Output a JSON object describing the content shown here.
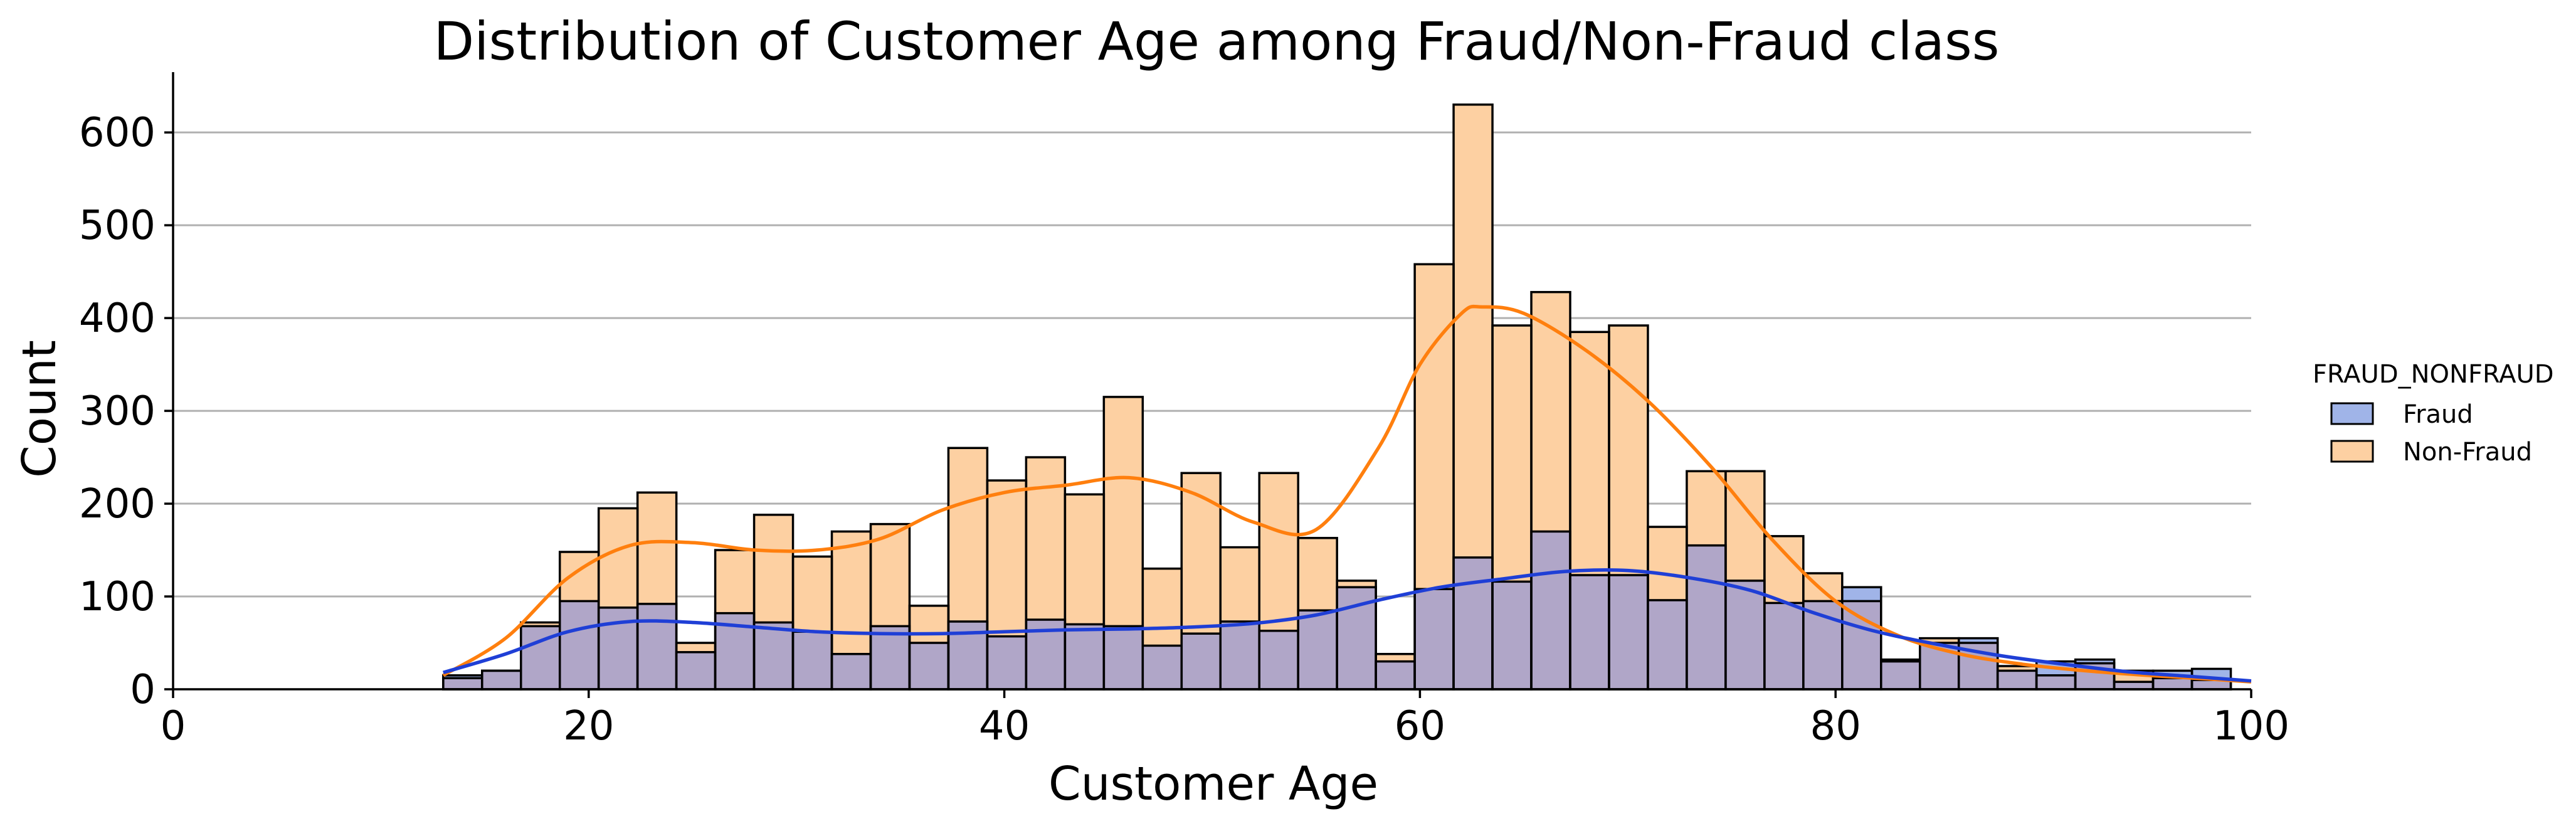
{
  "chart_data": {
    "type": "bar",
    "title": "Distribution of Customer Age among Fraud/Non-Fraud class",
    "xlabel": "Customer Age",
    "ylabel": "Count",
    "xlim": [
      0,
      100
    ],
    "ylim": [
      0,
      665
    ],
    "xticks": [
      0,
      20,
      40,
      60,
      80,
      100
    ],
    "yticks": [
      0,
      100,
      200,
      300,
      400,
      500,
      600
    ],
    "grid": "horizontal",
    "legend": {
      "title": "FRAUD_NONFRAUD",
      "placement": "right",
      "entries": [
        "Fraud",
        "Non-Fraud"
      ]
    },
    "bin_edges": [
      13,
      14.87,
      16.74,
      18.61,
      20.48,
      22.35,
      24.22,
      26.09,
      27.96,
      29.83,
      31.7,
      33.57,
      35.44,
      37.31,
      39.18,
      41.05,
      42.92,
      44.79,
      46.66,
      48.53,
      50.4,
      52.27,
      54.14,
      56.01,
      57.88,
      59.75,
      61.62,
      63.49,
      65.36,
      67.23,
      69.1,
      70.97,
      72.84,
      74.71,
      76.58,
      78.45,
      80.32,
      82.19,
      84.06,
      85.93,
      87.8,
      89.67,
      91.54,
      93.41,
      95.28,
      97.15,
      99.02
    ],
    "series": [
      {
        "name": "Fraud",
        "values": [
          15,
          20,
          68,
          95,
          88,
          92,
          40,
          82,
          72,
          62,
          38,
          68,
          50,
          73,
          57,
          75,
          70,
          68,
          47,
          60,
          73,
          63,
          85,
          110,
          30,
          108,
          142,
          116,
          170,
          123,
          123,
          96,
          155,
          117,
          93,
          95,
          110,
          32,
          50,
          55,
          20,
          30,
          32,
          8,
          20,
          22
        ],
        "kde": [
          [
            13,
            18
          ],
          [
            16,
            38
          ],
          [
            19,
            62
          ],
          [
            22,
            73
          ],
          [
            25,
            72
          ],
          [
            28,
            67
          ],
          [
            31,
            62
          ],
          [
            34,
            60
          ],
          [
            37,
            60
          ],
          [
            40,
            62
          ],
          [
            43,
            64
          ],
          [
            46,
            65
          ],
          [
            49,
            67
          ],
          [
            52,
            71
          ],
          [
            55,
            80
          ],
          [
            58,
            96
          ],
          [
            61,
            110
          ],
          [
            64,
            119
          ],
          [
            67,
            127
          ],
          [
            70,
            128
          ],
          [
            73,
            120
          ],
          [
            76,
            106
          ],
          [
            79,
            82
          ],
          [
            82,
            62
          ],
          [
            85,
            48
          ],
          [
            88,
            36
          ],
          [
            91,
            27
          ],
          [
            94,
            19
          ],
          [
            97,
            14
          ],
          [
            100,
            9
          ]
        ],
        "color": "#a0b4e8",
        "kde_color": "#1f3fd6"
      },
      {
        "name": "Non-Fraud",
        "values": [
          12,
          20,
          72,
          148,
          195,
          212,
          50,
          150,
          188,
          143,
          170,
          178,
          90,
          260,
          225,
          250,
          210,
          315,
          130,
          233,
          153,
          233,
          163,
          117,
          38,
          458,
          630,
          392,
          428,
          385,
          392,
          175,
          235,
          235,
          165,
          125,
          95,
          30,
          55,
          50,
          25,
          15,
          28,
          20,
          12,
          10
        ],
        "kde": [
          [
            13,
            15
          ],
          [
            16,
            55
          ],
          [
            19,
            120
          ],
          [
            22,
            155
          ],
          [
            25,
            158
          ],
          [
            28,
            150
          ],
          [
            31,
            150
          ],
          [
            34,
            162
          ],
          [
            37,
            193
          ],
          [
            40,
            212
          ],
          [
            43,
            220
          ],
          [
            46,
            228
          ],
          [
            49,
            212
          ],
          [
            52,
            180
          ],
          [
            55,
            172
          ],
          [
            58,
            260
          ],
          [
            60,
            350
          ],
          [
            62,
            405
          ],
          [
            63,
            412
          ],
          [
            65,
            405
          ],
          [
            68,
            365
          ],
          [
            71,
            310
          ],
          [
            74,
            240
          ],
          [
            77,
            160
          ],
          [
            80,
            95
          ],
          [
            83,
            58
          ],
          [
            86,
            38
          ],
          [
            89,
            27
          ],
          [
            92,
            20
          ],
          [
            95,
            15
          ],
          [
            98,
            11
          ],
          [
            100,
            8
          ]
        ],
        "color": "#fdd0a2",
        "kde_color": "#ff7f0e"
      }
    ],
    "overlap_color": "#b0a6c8"
  }
}
